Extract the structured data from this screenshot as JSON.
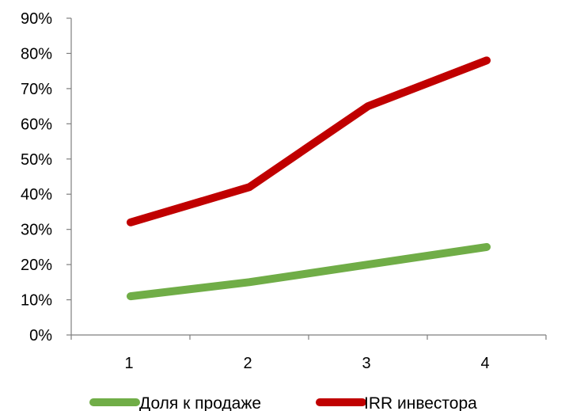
{
  "chart_data": {
    "type": "line",
    "categories": [
      "1",
      "2",
      "3",
      "4"
    ],
    "y_ticks": [
      "0%",
      "10%",
      "20%",
      "30%",
      "40%",
      "50%",
      "60%",
      "70%",
      "80%",
      "90%"
    ],
    "ylim": [
      0,
      90
    ],
    "grid": false,
    "legend_position": "bottom",
    "series": [
      {
        "name": "Доля к продаже",
        "values": [
          11,
          15,
          20,
          25
        ],
        "color": "#70AD47"
      },
      {
        "name": "IRR инвестора",
        "values": [
          32,
          42,
          65,
          78
        ],
        "color": "#C00000"
      }
    ]
  }
}
